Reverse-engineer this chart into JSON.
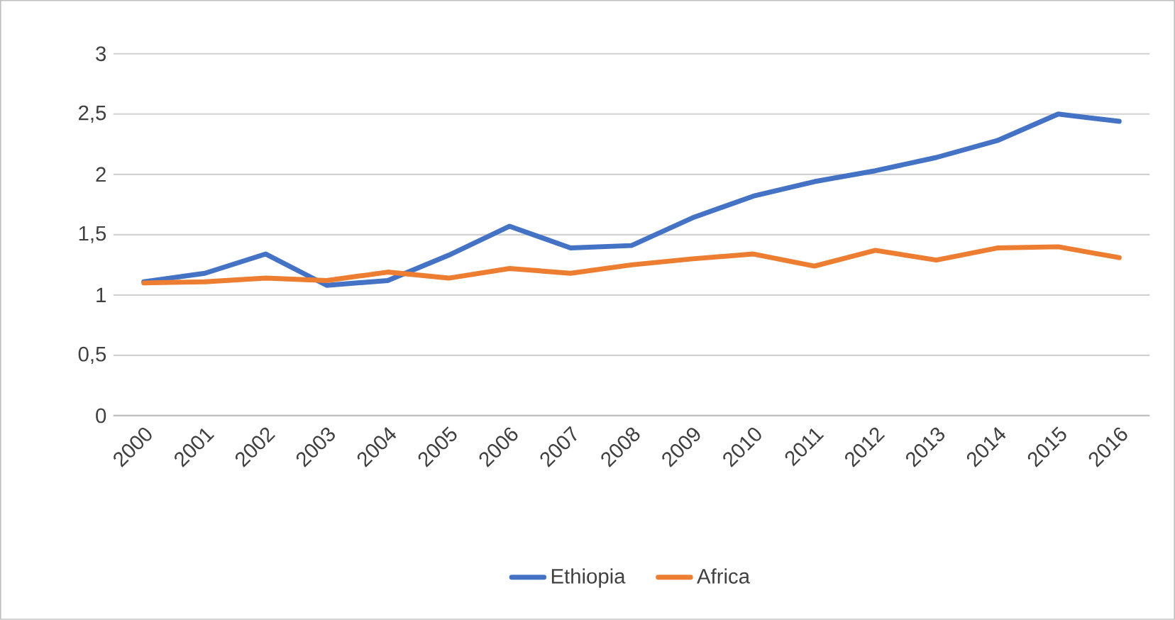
{
  "chart_data": {
    "type": "line",
    "categories": [
      "2000",
      "2001",
      "2002",
      "2003",
      "2004",
      "2005",
      "2006",
      "2007",
      "2008",
      "2009",
      "2010",
      "2011",
      "2012",
      "2013",
      "2014",
      "2015",
      "2016"
    ],
    "series": [
      {
        "name": "Ethiopia",
        "color": "#4472c4",
        "values": [
          1.11,
          1.18,
          1.34,
          1.08,
          1.12,
          1.33,
          1.57,
          1.39,
          1.41,
          1.64,
          1.82,
          1.94,
          2.03,
          2.14,
          2.28,
          2.5,
          2.44
        ]
      },
      {
        "name": "Africa",
        "color": "#ed7d31",
        "values": [
          1.1,
          1.11,
          1.14,
          1.12,
          1.19,
          1.14,
          1.22,
          1.18,
          1.25,
          1.3,
          1.34,
          1.24,
          1.37,
          1.29,
          1.39,
          1.4,
          1.31
        ]
      }
    ],
    "ylim": [
      0,
      3
    ],
    "yticks": [
      0,
      {
        "value": 0.5,
        "label": "0,5"
      },
      1,
      {
        "value": 1.5,
        "label": "1,5"
      },
      2,
      {
        "value": 2.5,
        "label": "2,5"
      },
      3
    ],
    "grid": "y",
    "legend": "bottom",
    "marker": "none",
    "line_style": "solid"
  }
}
